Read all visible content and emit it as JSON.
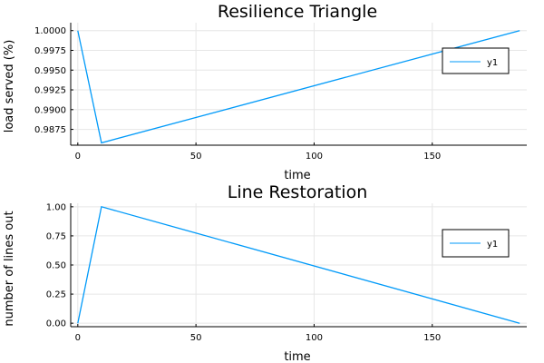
{
  "chart_data": [
    {
      "type": "line",
      "title": "Resilience Triangle",
      "xlabel": "time",
      "ylabel": "load served (%)",
      "xlim": [
        -3,
        190
      ],
      "ylim": [
        0.9855,
        1.001
      ],
      "xticks": [
        0,
        50,
        100,
        150
      ],
      "xtick_labels": [
        "0",
        "50",
        "100",
        "150"
      ],
      "yticks": [
        0.9875,
        0.99,
        0.9925,
        0.995,
        0.9975,
        1.0
      ],
      "ytick_labels": [
        "0.9875",
        "0.9900",
        "0.9925",
        "0.9950",
        "0.9975",
        "1.0000"
      ],
      "grid": true,
      "legend": "top-right",
      "series": [
        {
          "name": "y1",
          "color": "#009af9",
          "x": [
            0,
            10,
            187
          ],
          "y": [
            1.0,
            0.9858,
            1.0
          ]
        }
      ]
    },
    {
      "type": "line",
      "title": "Line Restoration",
      "xlabel": "time",
      "ylabel": "number of lines out",
      "xlim": [
        -3,
        190
      ],
      "ylim": [
        -0.03,
        1.03
      ],
      "xticks": [
        0,
        50,
        100,
        150
      ],
      "xtick_labels": [
        "0",
        "50",
        "100",
        "150"
      ],
      "yticks": [
        0,
        0.25,
        0.5,
        0.75,
        1.0
      ],
      "ytick_labels": [
        "0.00",
        "0.25",
        "0.50",
        "0.75",
        "1.00"
      ],
      "grid": true,
      "legend": "top-right",
      "series": [
        {
          "name": "y1",
          "color": "#009af9",
          "x": [
            0,
            10,
            187
          ],
          "y": [
            0,
            1.0,
            0
          ]
        }
      ]
    }
  ]
}
